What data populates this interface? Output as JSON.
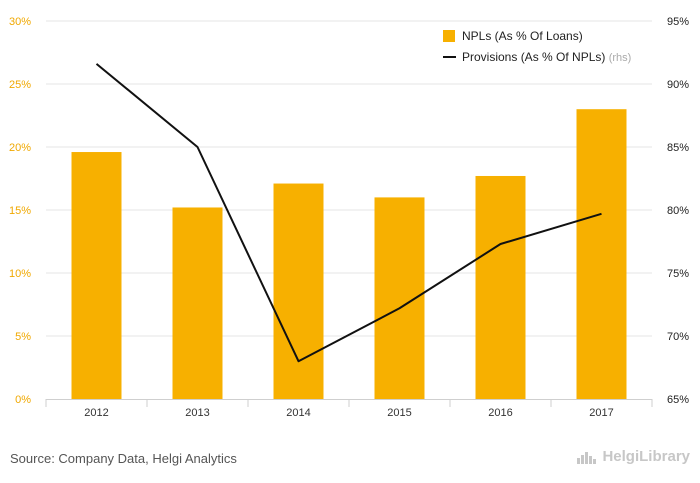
{
  "chart_data": {
    "type": "bar",
    "categories": [
      "2012",
      "2013",
      "2014",
      "2015",
      "2016",
      "2017"
    ],
    "series": [
      {
        "name": "NPLs (As % Of Loans)",
        "type": "bar",
        "axis": "left",
        "values": [
          19.6,
          15.2,
          17.1,
          16.0,
          17.7,
          23.0
        ]
      },
      {
        "name": "Provisions (As % Of NPLs)",
        "type": "line",
        "axis": "right",
        "values": [
          91.6,
          85.0,
          68.0,
          72.2,
          77.3,
          79.7
        ]
      }
    ],
    "y_left": {
      "min": 0,
      "max": 30,
      "ticks": [
        "0%",
        "5%",
        "10%",
        "15%",
        "20%",
        "25%",
        "30%"
      ]
    },
    "y_right": {
      "min": 65,
      "max": 95,
      "ticks": [
        "65%",
        "70%",
        "75%",
        "80%",
        "85%",
        "90%",
        "95%"
      ]
    },
    "legend": {
      "position": "top-right",
      "items": [
        {
          "label": "NPLs (As % Of Loans)",
          "suffix": ""
        },
        {
          "label": "Provisions (As % Of NPLs)",
          "suffix": "(rhs)"
        }
      ]
    },
    "grid": true,
    "colors": {
      "bar": "#F7B000",
      "line": "#111111",
      "left_axis_text": "#F0A800",
      "right_axis_text": "#222222",
      "grid": "#e6e6e6"
    }
  },
  "footer": {
    "source": "Source: Company Data, Helgi Analytics",
    "logo_text": "HelgiLibrary",
    "logo_icon": "helgi-library-icon"
  }
}
